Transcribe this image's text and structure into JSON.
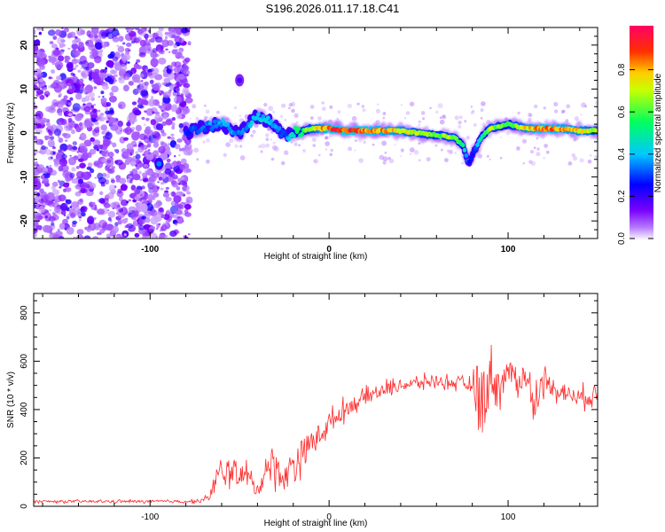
{
  "page": {
    "title": "S196.2026.011.17.18.C41"
  },
  "chart_data": [
    {
      "type": "heatmap",
      "name": "spectrogram",
      "xlabel": "Height of straight line (km)",
      "ylabel": "Frequency (Hz)",
      "xlim": [
        -165,
        150
      ],
      "ylim": [
        -24,
        24
      ],
      "x_ticks": [
        -100,
        0,
        100
      ],
      "y_ticks": [
        -20,
        -10,
        0,
        10,
        20
      ],
      "colorbar": {
        "label": "Normalized spectral amplitude",
        "range": [
          0,
          1
        ],
        "ticks": [
          0.0,
          0.2,
          0.4,
          0.6,
          0.8
        ],
        "colormap": [
          "#ffffff",
          "#7a00ff",
          "#0000ff",
          "#00c8ff",
          "#00ff80",
          "#ffff00",
          "#ff8000",
          "#ff0000",
          "#ff0066"
        ]
      },
      "ridge": {
        "x": [
          -80,
          -70,
          -60,
          -50,
          -40,
          -30,
          -25,
          -20,
          -10,
          0,
          10,
          20,
          30,
          40,
          50,
          60,
          70,
          75,
          78,
          80,
          85,
          90,
          100,
          110,
          120,
          130,
          140,
          150
        ],
        "freq": [
          0,
          1.5,
          2,
          0,
          4,
          2,
          -1,
          0,
          1,
          1,
          0.5,
          0.5,
          0.5,
          0.5,
          0,
          -0.5,
          -1,
          -3,
          -7,
          -5,
          -1,
          1,
          2,
          1,
          1,
          1,
          0.5,
          0.5
        ],
        "amplitude": [
          0.3,
          0.35,
          0.4,
          0.35,
          0.45,
          0.4,
          0.3,
          0.5,
          0.7,
          0.9,
          0.95,
          0.9,
          0.85,
          0.8,
          0.7,
          0.65,
          0.7,
          0.5,
          0.3,
          0.25,
          0.5,
          0.7,
          0.6,
          0.8,
          0.9,
          0.85,
          0.8,
          0.7
        ]
      },
      "noise_region": {
        "x_start": -165,
        "x_end": -78
      },
      "features": [
        {
          "x": -50,
          "freq": 12,
          "amplitude": 0.2
        },
        {
          "x": -95,
          "freq": -7,
          "amplitude": 0.35
        }
      ]
    },
    {
      "type": "line",
      "name": "snr",
      "xlabel": "Height of straight line (km)",
      "ylabel": "SNR (10 * v/v)",
      "xlim": [
        -165,
        150
      ],
      "ylim": [
        0,
        880
      ],
      "x_ticks": [
        -100,
        0,
        100
      ],
      "y_ticks": [
        0,
        200,
        400,
        600,
        800
      ],
      "color": "#ff2a2a",
      "envelope": {
        "x": [
          -165,
          -75,
          -68,
          -62,
          -55,
          -45,
          -40,
          -35,
          -30,
          -25,
          -20,
          -10,
          0,
          10,
          20,
          30,
          40,
          50,
          60,
          70,
          80,
          85,
          90,
          95,
          100,
          105,
          110,
          114,
          120,
          130,
          140,
          150
        ],
        "mean": [
          20,
          20,
          30,
          120,
          150,
          120,
          60,
          170,
          160,
          110,
          180,
          260,
          340,
          410,
          450,
          480,
          500,
          510,
          520,
          510,
          500,
          430,
          540,
          500,
          560,
          520,
          540,
          420,
          520,
          470,
          450,
          460
        ],
        "spread": [
          8,
          10,
          20,
          100,
          90,
          80,
          40,
          120,
          110,
          90,
          120,
          90,
          70,
          60,
          50,
          50,
          40,
          40,
          40,
          40,
          45,
          300,
          150,
          120,
          80,
          90,
          100,
          120,
          80,
          60,
          60,
          80
        ]
      }
    }
  ]
}
